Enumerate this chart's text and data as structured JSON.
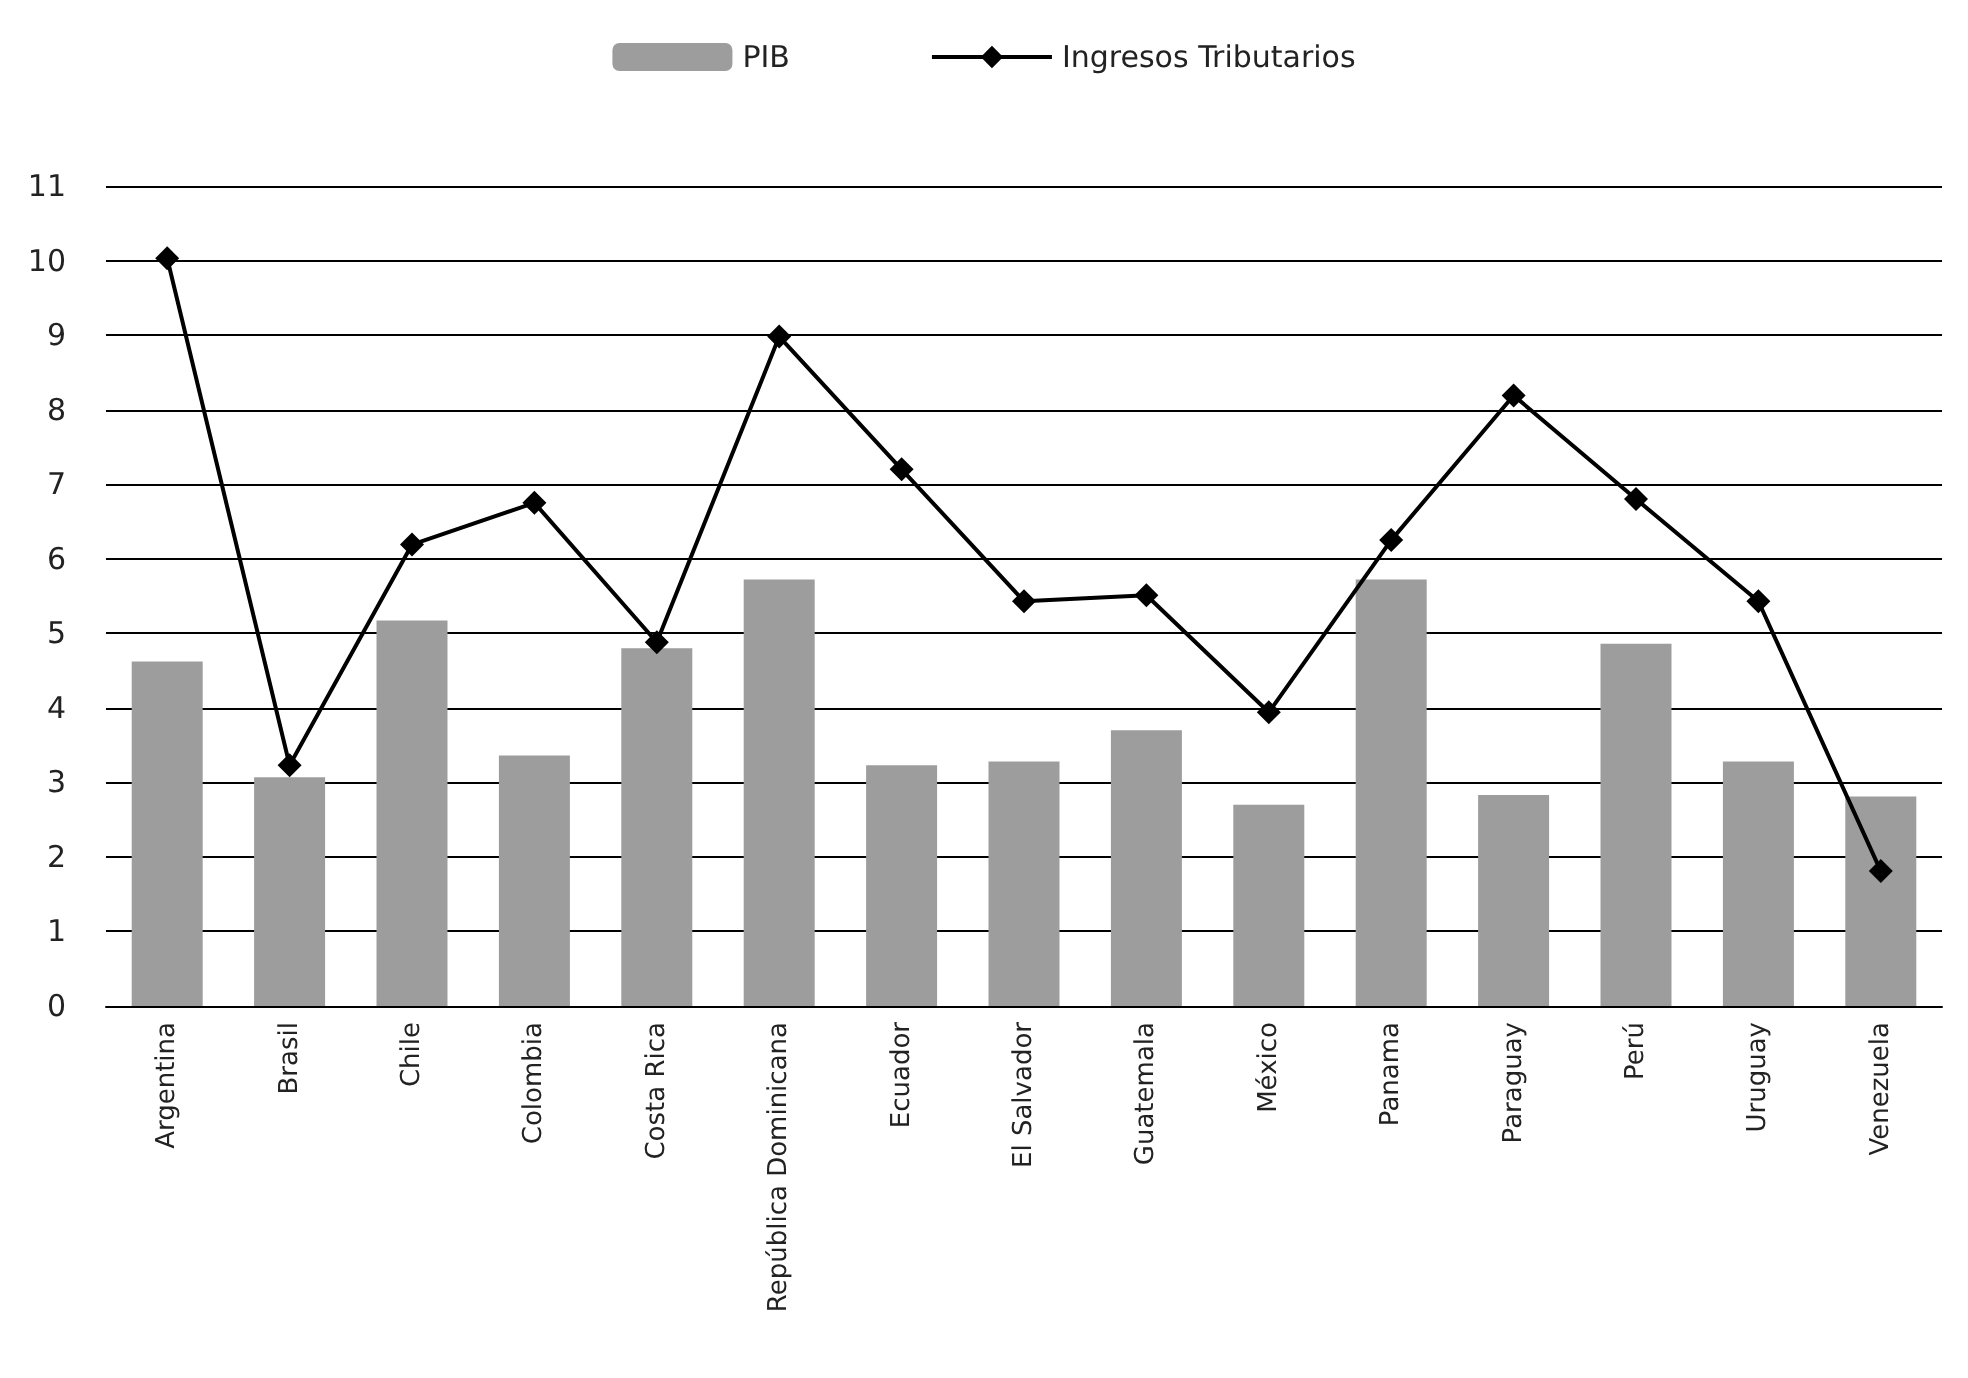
{
  "chart_data": {
    "type": "bar",
    "categories": [
      "Argentina",
      "Brasil",
      "Chile",
      "Colombia",
      "Costa Rica",
      "República Dominicana",
      "Ecuador",
      "El Salvador",
      "Guatemala",
      "México",
      "Panama",
      "Paraguay",
      "Perú",
      "Uruguay",
      "Venezuela"
    ],
    "series": [
      {
        "name": "PIB",
        "color": "#9d9d9d",
        "values": [
          4.62,
          3.07,
          5.17,
          3.36,
          4.8,
          5.72,
          3.23,
          3.28,
          3.7,
          2.7,
          5.72,
          2.83,
          4.86,
          3.28,
          2.81
        ]
      },
      {
        "name": "Ingresos Tributarios",
        "type": "line",
        "color": "#000000",
        "values": [
          10.03,
          3.23,
          6.19,
          6.75,
          4.88,
          8.98,
          7.2,
          5.43,
          5.51,
          3.94,
          6.25,
          8.19,
          6.8,
          5.43,
          1.81
        ]
      }
    ],
    "ylim": [
      0,
      11
    ],
    "yticks": [
      0,
      1,
      2,
      3,
      4,
      5,
      6,
      7,
      8,
      9,
      10,
      11
    ],
    "grid": "y",
    "legend": "top",
    "marker": "diamond",
    "line_style": "solid"
  }
}
